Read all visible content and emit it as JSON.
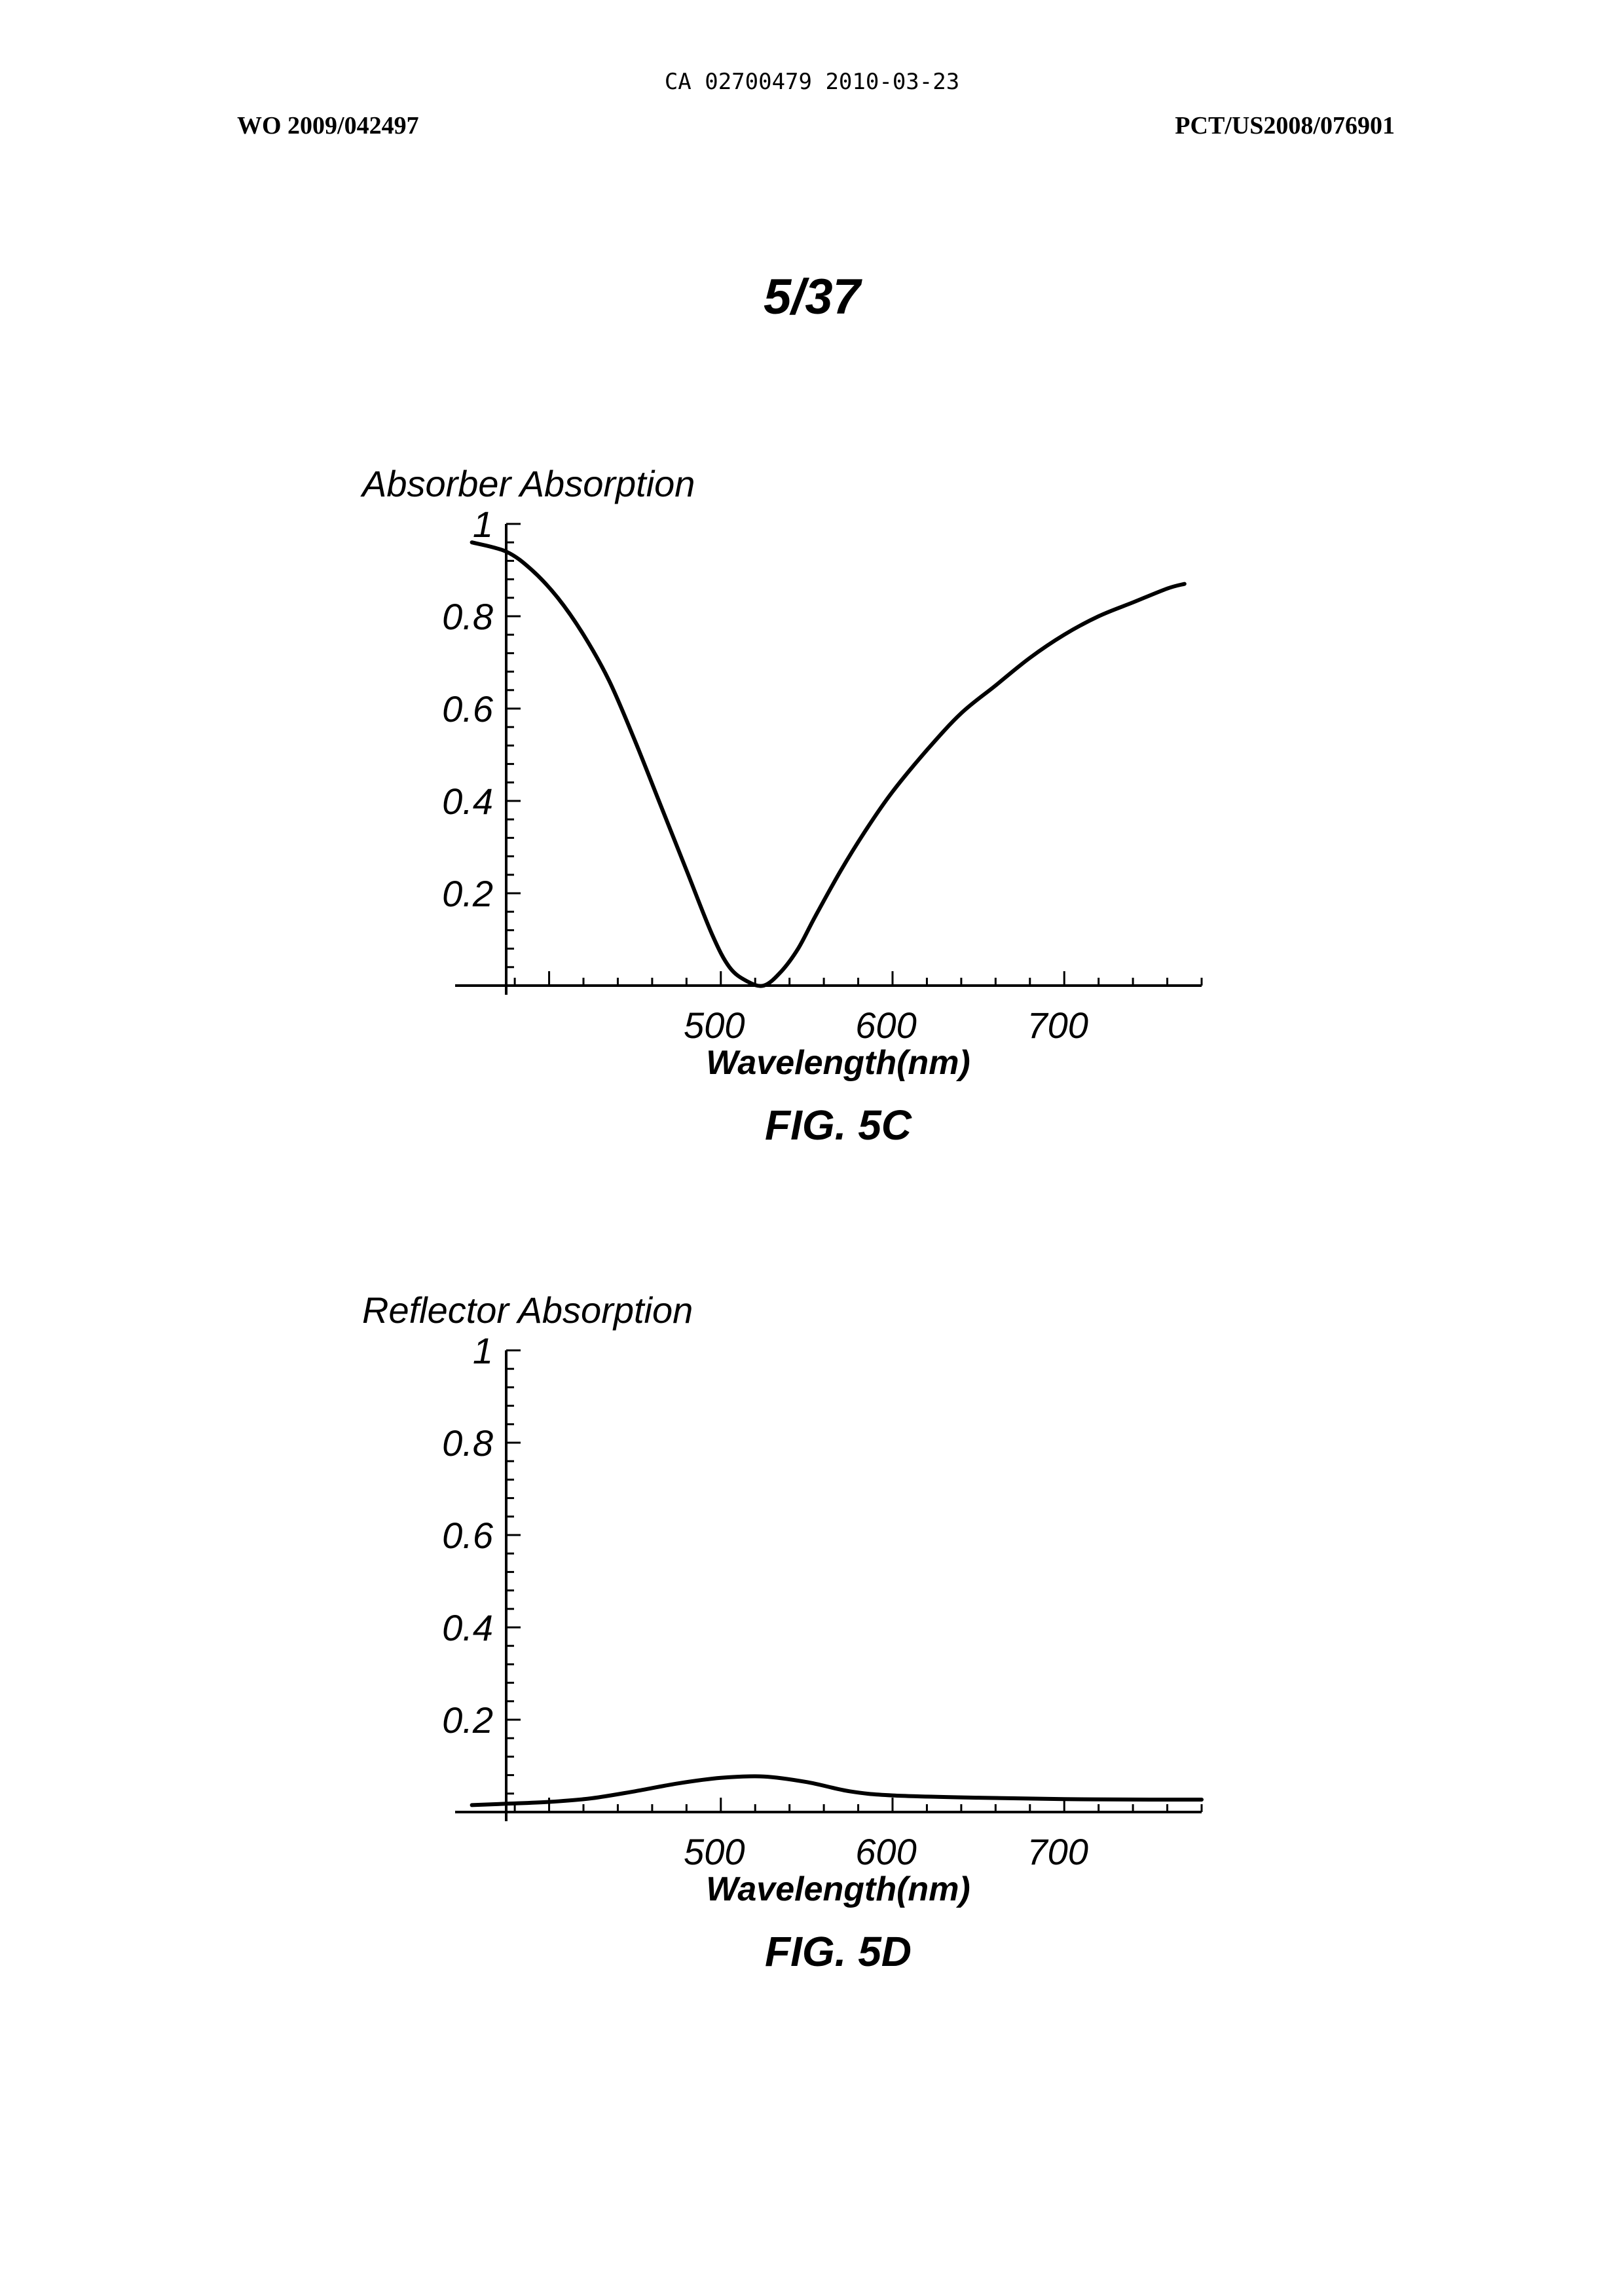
{
  "header": {
    "ca_number": "CA 02700479 2010-03-23",
    "wo_number": "WO 2009/042497",
    "pct_number": "PCT/US2008/076901",
    "sheet": "5/37"
  },
  "chart_data": [
    {
      "type": "line",
      "ylabel": "Absorber Absorption",
      "xlabel": "Wavelength(nm)",
      "caption": "FIG. 5C",
      "xlim": [
        375,
        780
      ],
      "ylim": [
        0,
        1
      ],
      "xticks": [
        500,
        600,
        700
      ],
      "yticks": [
        0.2,
        0.4,
        0.6,
        0.8,
        1
      ],
      "ytick_labels": [
        "0.2",
        "0.4",
        "0.6",
        "0.8",
        "1"
      ],
      "series": [
        {
          "x": [
            355,
            375,
            390,
            405,
            420,
            435,
            450,
            465,
            480,
            495,
            505,
            515,
            525,
            535,
            545,
            555,
            570,
            585,
            600,
            620,
            640,
            660,
            680,
            700,
            720,
            740,
            760,
            770
          ],
          "y": [
            0.96,
            0.94,
            0.9,
            0.84,
            0.76,
            0.66,
            0.53,
            0.39,
            0.25,
            0.11,
            0.04,
            0.01,
            0.0,
            0.03,
            0.08,
            0.15,
            0.25,
            0.34,
            0.42,
            0.51,
            0.59,
            0.65,
            0.71,
            0.76,
            0.8,
            0.83,
            0.86,
            0.87
          ]
        }
      ]
    },
    {
      "type": "line",
      "ylabel": "Reflector Absorption",
      "xlabel": "Wavelength(nm)",
      "caption": "FIG. 5D",
      "xlim": [
        375,
        780
      ],
      "ylim": [
        0,
        1
      ],
      "xticks": [
        500,
        600,
        700
      ],
      "yticks": [
        0.2,
        0.4,
        0.6,
        0.8,
        1
      ],
      "ytick_labels": [
        "0.2",
        "0.4",
        "0.6",
        "0.8",
        "1"
      ],
      "series": [
        {
          "x": [
            355,
            375,
            400,
            425,
            450,
            475,
            500,
            525,
            550,
            575,
            600,
            650,
            700,
            750,
            780
          ],
          "y": [
            0.015,
            0.018,
            0.022,
            0.03,
            0.045,
            0.062,
            0.074,
            0.077,
            0.065,
            0.045,
            0.036,
            0.031,
            0.028,
            0.027,
            0.027
          ]
        }
      ]
    }
  ]
}
